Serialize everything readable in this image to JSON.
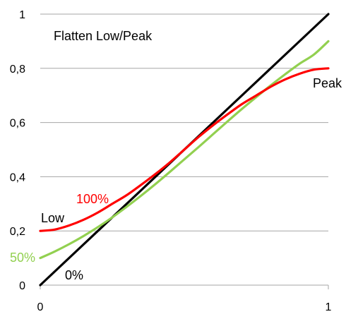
{
  "chart_data": {
    "type": "line",
    "title": "Flatten Low/Peak",
    "xlabel": "",
    "ylabel": "",
    "xlim": [
      0,
      1
    ],
    "ylim": [
      0,
      1
    ],
    "x_ticks": [
      "0",
      "1"
    ],
    "y_ticks": [
      "0",
      "0,2",
      "0,4",
      "0,6",
      "0,8",
      "1"
    ],
    "y_tick_values": [
      0,
      0.2,
      0.4,
      0.6,
      0.8,
      1
    ],
    "grid": "horizontal",
    "series": [
      {
        "color": "#000000",
        "x": [
          0,
          1
        ],
        "y": [
          0,
          1
        ]
      },
      {
        "color": "#92d050",
        "x": [
          0,
          0.05,
          0.1,
          0.15,
          0.2,
          0.25,
          0.3,
          0.35,
          0.4,
          0.45,
          0.5,
          0.55,
          0.6,
          0.65,
          0.7,
          0.75,
          0.8,
          0.85,
          0.9,
          0.95,
          1
        ],
        "y": [
          0.1,
          0.124,
          0.151,
          0.181,
          0.214,
          0.25,
          0.289,
          0.33,
          0.373,
          0.418,
          0.464,
          0.51,
          0.557,
          0.604,
          0.65,
          0.694,
          0.737,
          0.778,
          0.817,
          0.851,
          0.9
        ]
      },
      {
        "color": "#ff0000",
        "x": [
          0,
          0.05,
          0.1,
          0.15,
          0.2,
          0.25,
          0.3,
          0.35,
          0.4,
          0.45,
          0.5,
          0.55,
          0.6,
          0.65,
          0.7,
          0.75,
          0.8,
          0.85,
          0.9,
          0.95,
          1
        ],
        "y": [
          0.2,
          0.205,
          0.22,
          0.241,
          0.268,
          0.3,
          0.332,
          0.37,
          0.41,
          0.453,
          0.5,
          0.547,
          0.59,
          0.63,
          0.668,
          0.7,
          0.732,
          0.759,
          0.78,
          0.795,
          0.8
        ]
      }
    ],
    "annotations": {
      "low": {
        "text": "Low",
        "color": "#000000"
      },
      "peak": {
        "text": "Peak",
        "color": "#000000"
      },
      "pct100": {
        "text": "100%",
        "color": "#ff0000"
      },
      "pct50": {
        "text": "50%",
        "color": "#92d050"
      },
      "pct0": {
        "text": "0%",
        "color": "#000000"
      }
    }
  }
}
